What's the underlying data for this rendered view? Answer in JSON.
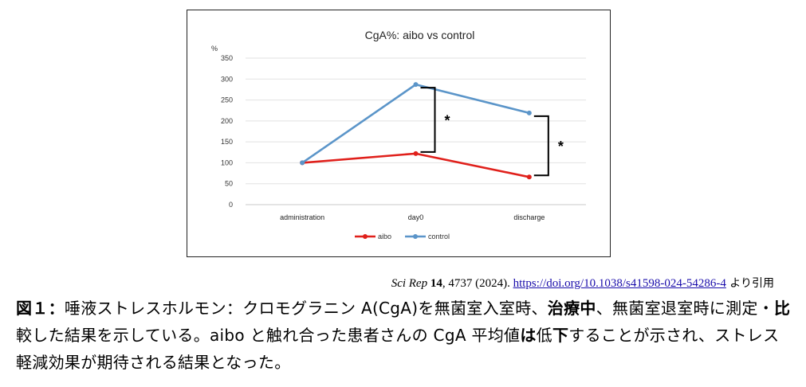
{
  "chart_data": {
    "type": "line",
    "title": "CgA%: aibo vs control",
    "ylabel": "%",
    "xlabel": "",
    "categories": [
      "administration",
      "day0",
      "discharge"
    ],
    "ylim": [
      0,
      350
    ],
    "yticks": [
      0,
      50,
      100,
      150,
      200,
      250,
      300,
      350
    ],
    "grid": true,
    "legend": "bottom",
    "series": [
      {
        "name": "aibo",
        "values": [
          100,
          122,
          66
        ],
        "color": "#e0201b"
      },
      {
        "name": "control",
        "values": [
          100,
          287,
          219
        ],
        "color": "#5b95c9"
      }
    ],
    "annotations": [
      {
        "text": "*",
        "category": "day0"
      },
      {
        "text": "*",
        "category": "discharge"
      }
    ]
  },
  "citation": {
    "journal": "Sci Rep",
    "volume": "14",
    "rest": ", 4737 (2024). ",
    "doi": "https://doi.org/10.1038/s41598-024-54286-4",
    "suffix": " より引用"
  },
  "caption": {
    "label": "図１：",
    "part1": "唾液ストレスホルモン：クロモグラニン A(CgA)を無菌室入室時、",
    "bold1": "治療中",
    "part2": "、無菌室退室時に測定・",
    "bold2": "比",
    "part3": "較した結果を示している。aibo と触れ合った患者さんの CgA 平均値",
    "bold3": "は",
    "part4": "低",
    "bold4": "下",
    "part5": "することが示され、ストレス軽減効果が期待される結果となった。"
  }
}
